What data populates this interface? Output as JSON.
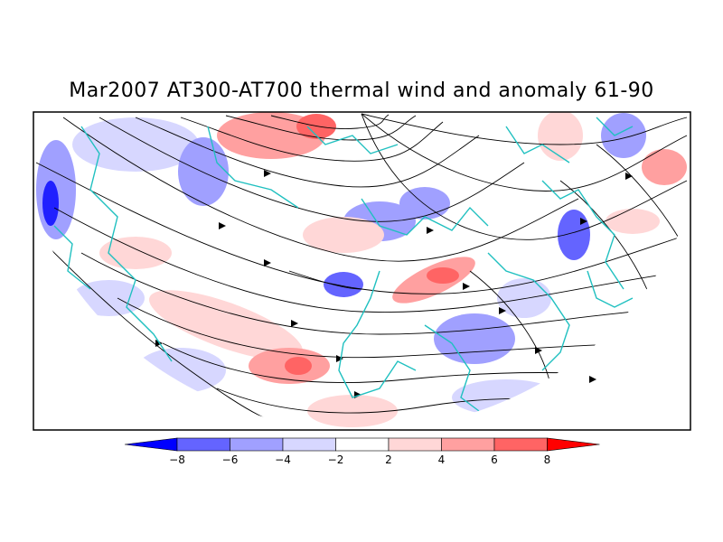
{
  "title": "Mar2007 AT300-AT700 thermal wind and anomaly 61-90",
  "colorbar": {
    "labels": [
      "-8",
      "-6",
      "-4",
      "-2",
      "2",
      "4",
      "6",
      "8"
    ],
    "colors": [
      "#0000ff",
      "#6464ff",
      "#a0a0ff",
      "#d7d7ff",
      "#ffffff",
      "#ffd7d7",
      "#ffa0a0",
      "#ff6464",
      "#ff0000"
    ]
  },
  "map": {
    "projection": "north-polar-stereographic",
    "coastline_color": "#20c0c0",
    "streamline_color": "#000000"
  }
}
